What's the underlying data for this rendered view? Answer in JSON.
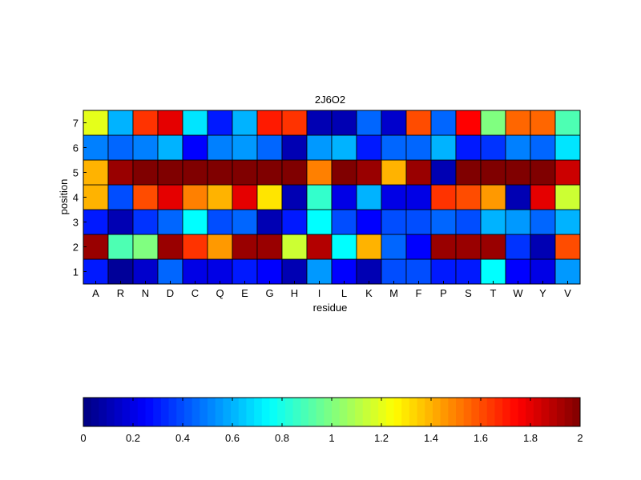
{
  "chart_data": {
    "type": "heatmap",
    "title": "2J6O2",
    "xlabel": "residue",
    "ylabel": "position",
    "x_categories": [
      "A",
      "R",
      "N",
      "D",
      "C",
      "Q",
      "E",
      "G",
      "H",
      "I",
      "L",
      "K",
      "M",
      "F",
      "P",
      "S",
      "T",
      "W",
      "Y",
      "V"
    ],
    "y_categories": [
      "1",
      "2",
      "3",
      "4",
      "5",
      "6",
      "7"
    ],
    "values": [
      [
        0.3,
        0.05,
        0.15,
        0.45,
        0.2,
        0.2,
        0.3,
        0.25,
        0.1,
        0.55,
        0.25,
        0.1,
        0.4,
        0.4,
        0.3,
        0.3,
        0.75,
        0.25,
        0.2,
        0.55
      ],
      [
        1.95,
        0.9,
        1.0,
        1.95,
        1.65,
        1.45,
        1.95,
        1.95,
        1.15,
        1.9,
        0.75,
        1.4,
        0.45,
        0.25,
        1.95,
        1.95,
        1.95,
        0.35,
        0.1,
        1.6
      ],
      [
        0.3,
        0.1,
        0.35,
        0.45,
        0.75,
        0.4,
        0.45,
        0.1,
        0.3,
        0.75,
        0.4,
        0.25,
        0.4,
        0.4,
        0.45,
        0.4,
        0.6,
        0.55,
        0.45,
        0.6
      ],
      [
        1.4,
        0.4,
        1.6,
        1.8,
        1.5,
        1.4,
        1.8,
        1.3,
        0.1,
        0.85,
        0.2,
        0.6,
        0.2,
        0.2,
        1.65,
        1.6,
        1.45,
        0.1,
        1.8,
        1.15
      ],
      [
        1.4,
        1.95,
        2.0,
        2.0,
        2.0,
        2.0,
        2.0,
        2.0,
        2.0,
        1.5,
        2.0,
        1.95,
        1.4,
        1.95,
        0.1,
        2.0,
        2.0,
        2.0,
        2.0,
        1.85
      ],
      [
        0.5,
        0.45,
        0.5,
        0.6,
        0.25,
        0.5,
        0.55,
        0.45,
        0.1,
        0.55,
        0.6,
        0.3,
        0.45,
        0.45,
        0.6,
        0.3,
        0.35,
        0.5,
        0.45,
        0.7
      ],
      [
        1.2,
        0.6,
        1.65,
        1.8,
        0.7,
        0.3,
        0.6,
        1.7,
        1.65,
        0.1,
        0.1,
        0.45,
        0.15,
        1.6,
        0.45,
        1.75,
        1.0,
        1.55,
        1.55,
        0.9
      ]
    ],
    "colorbar": {
      "min": 0,
      "max": 2,
      "colormap": "jet",
      "ticks": [
        "0",
        "0.2",
        "0.4",
        "0.6",
        "0.8",
        "1",
        "1.2",
        "1.4",
        "1.6",
        "1.8",
        "2"
      ]
    }
  }
}
